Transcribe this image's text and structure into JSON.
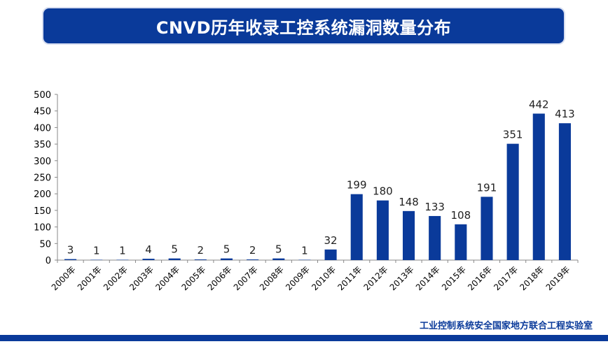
{
  "header": {
    "title": "CNVD历年收录工控系统漏洞数量分布"
  },
  "footer": {
    "source": "工业控制系统安全国家地方联合工程实验室"
  },
  "colors": {
    "bar": "#0a3a9a",
    "title_bg": "#0a3a9a",
    "axis": "#888888",
    "text": "#000000"
  },
  "chart_data": {
    "type": "bar",
    "title": "CNVD历年收录工控系统漏洞数量分布",
    "xlabel": "",
    "ylabel": "",
    "categories": [
      "2000年",
      "2001年",
      "2002年",
      "2003年",
      "2004年",
      "2005年",
      "2006年",
      "2007年",
      "2008年",
      "2009年",
      "2010年",
      "2011年",
      "2012年",
      "2013年",
      "2014年",
      "2015年",
      "2016年",
      "2017年",
      "2018年",
      "2019年"
    ],
    "values": [
      3,
      1,
      1,
      4,
      5,
      2,
      5,
      2,
      5,
      1,
      32,
      199,
      180,
      148,
      133,
      108,
      191,
      351,
      442,
      413
    ],
    "ylim": [
      0,
      500
    ],
    "yticks": [
      0,
      50,
      100,
      150,
      200,
      250,
      300,
      350,
      400,
      450,
      500
    ],
    "grid": false,
    "legend": "none"
  }
}
